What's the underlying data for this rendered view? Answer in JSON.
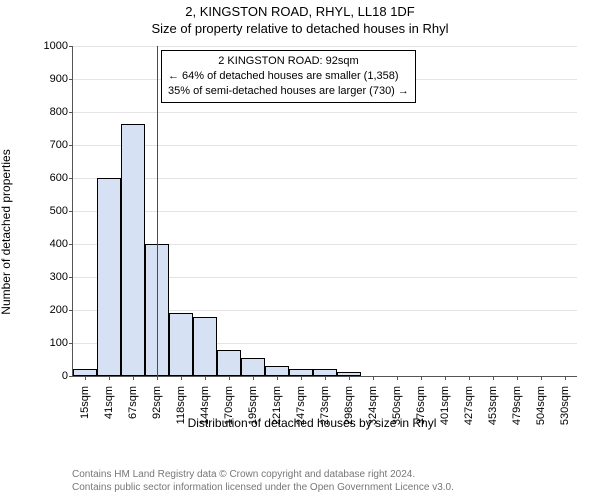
{
  "titles": {
    "line1": "2, KINGSTON ROAD, RHYL, LL18 1DF",
    "line2": "Size of property relative to detached houses in Rhyl"
  },
  "chart": {
    "type": "histogram",
    "ylabel": "Number of detached properties",
    "xlabel": "Distribution of detached houses by size in Rhyl",
    "ylim": [
      0,
      1000
    ],
    "ytick_step": 100,
    "yticks": [
      0,
      100,
      200,
      300,
      400,
      500,
      600,
      700,
      800,
      900,
      1000
    ],
    "xtick_labels": [
      "15sqm",
      "41sqm",
      "67sqm",
      "92sqm",
      "118sqm",
      "144sqm",
      "170sqm",
      "195sqm",
      "221sqm",
      "247sqm",
      "273sqm",
      "298sqm",
      "324sqm",
      "350sqm",
      "376sqm",
      "401sqm",
      "427sqm",
      "453sqm",
      "479sqm",
      "504sqm",
      "530sqm"
    ],
    "bars": [
      {
        "value": 20
      },
      {
        "value": 600
      },
      {
        "value": 765
      },
      {
        "value": 400
      },
      {
        "value": 190
      },
      {
        "value": 180
      },
      {
        "value": 80
      },
      {
        "value": 55
      },
      {
        "value": 30
      },
      {
        "value": 20
      },
      {
        "value": 20
      },
      {
        "value": 12
      },
      {
        "value": 0
      },
      {
        "value": 0
      },
      {
        "value": 0
      },
      {
        "value": 0
      },
      {
        "value": 0
      },
      {
        "value": 0
      },
      {
        "value": 0
      },
      {
        "value": 0
      },
      {
        "value": 0
      }
    ],
    "bar_fill": "#d6e1f4",
    "bar_border": "#000000",
    "grid_color": "#e4e4e4",
    "axis_color": "#555555",
    "background_color": "#ffffff",
    "ref_line_index": 3,
    "ref_line_color": "#ff0000",
    "title_fontsize": 13,
    "label_fontsize": 12,
    "tick_fontsize": 11
  },
  "annotation": {
    "lines": [
      "2 KINGSTON ROAD: 92sqm",
      "← 64% of detached houses are smaller (1,358)",
      "35% of semi-detached houses are larger (730) →"
    ]
  },
  "footer": {
    "line1": "Contains HM Land Registry data © Crown copyright and database right 2024.",
    "line2": "Contains public sector information licensed under the Open Government Licence v3.0."
  }
}
